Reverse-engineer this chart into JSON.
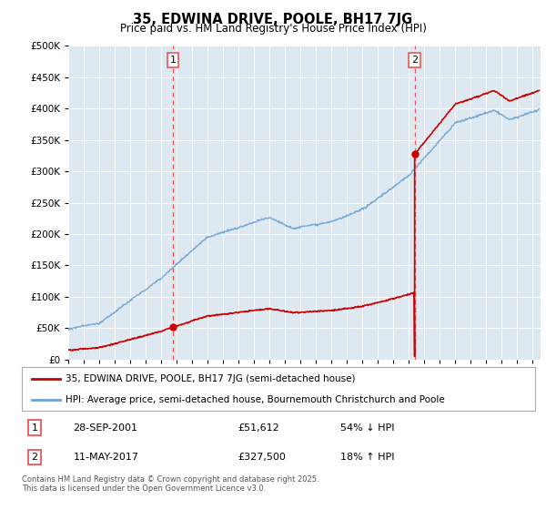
{
  "title": "35, EDWINA DRIVE, POOLE, BH17 7JG",
  "subtitle": "Price paid vs. HM Land Registry's House Price Index (HPI)",
  "legend_line1": "35, EDWINA DRIVE, POOLE, BH17 7JG (semi-detached house)",
  "legend_line2": "HPI: Average price, semi-detached house, Bournemouth Christchurch and Poole",
  "annotation1_label": "1",
  "annotation1_date": "28-SEP-2001",
  "annotation1_price": "£51,612",
  "annotation1_hpi": "54% ↓ HPI",
  "annotation2_label": "2",
  "annotation2_date": "11-MAY-2017",
  "annotation2_price": "£327,500",
  "annotation2_hpi": "18% ↑ HPI",
  "footnote": "Contains HM Land Registry data © Crown copyright and database right 2025.\nThis data is licensed under the Open Government Licence v3.0.",
  "sale1_year": 2001.75,
  "sale1_price": 51612,
  "sale2_year": 2017.37,
  "sale2_price": 327500,
  "hpi_color": "#6ba3d6",
  "price_color": "#cc0000",
  "vline_color": "#ee5555",
  "background_color": "#dde8f0",
  "ylim": [
    0,
    500000
  ],
  "xlim_start": 1995.0,
  "xlim_end": 2025.5
}
